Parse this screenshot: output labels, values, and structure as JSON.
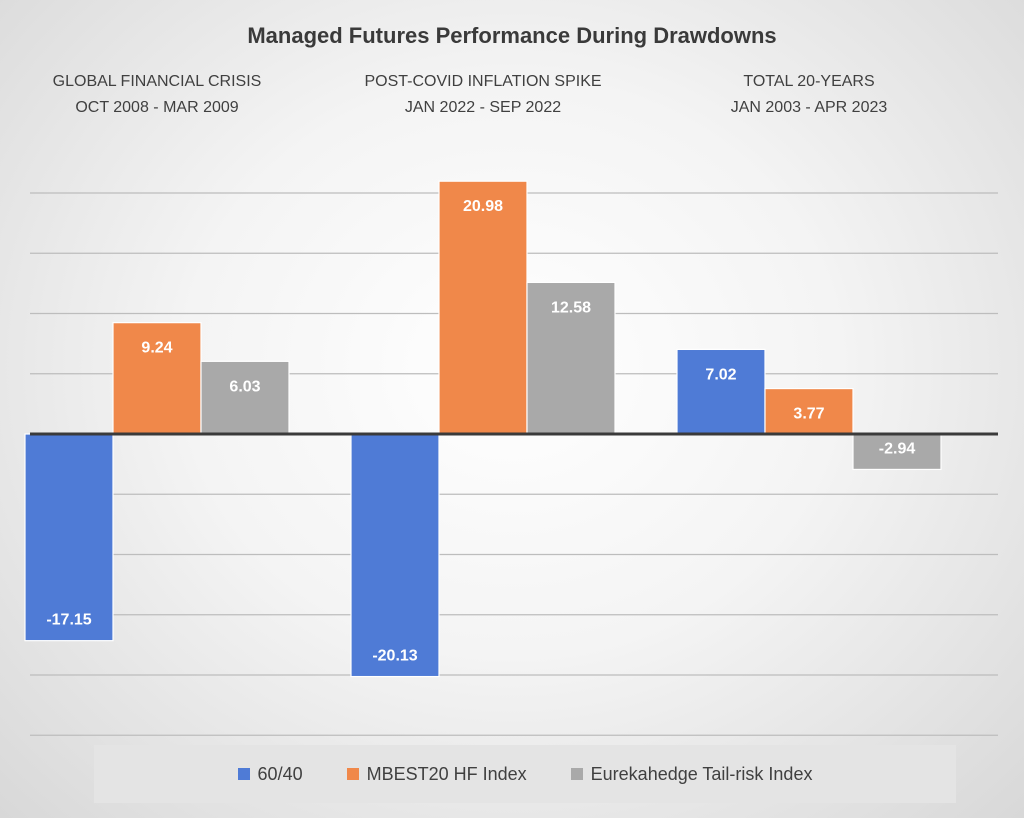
{
  "chart_data": {
    "type": "bar",
    "title": "Managed Futures Performance During Drawdowns",
    "groups": [
      {
        "line1": "GLOBAL FINANCIAL CRISIS",
        "line2": "OCT 2008 - MAR 2009"
      },
      {
        "line1": "POST-COVID INFLATION SPIKE",
        "line2": "JAN 2022 - SEP 2022"
      },
      {
        "line1": "TOTAL 20-YEARS",
        "line2": "JAN 2003 - APR 2023"
      }
    ],
    "series": [
      {
        "name": "60/40",
        "color": "#4f7bd6",
        "values": [
          -17.15,
          -20.13,
          7.02
        ],
        "labels": [
          "-17.15",
          "-20.13",
          "7.02"
        ]
      },
      {
        "name": "MBEST20 HF Index",
        "color": "#f0884a",
        "values": [
          9.24,
          20.98,
          3.77
        ],
        "labels": [
          "9.24",
          "20.98",
          "3.77"
        ]
      },
      {
        "name": "Eurekahedge Tail-risk Index",
        "color": "#a9a9a9",
        "values": [
          6.03,
          12.58,
          -2.94
        ],
        "labels": [
          "6.03",
          "12.58",
          "-2.94"
        ]
      }
    ],
    "ylim": [
      -25,
      25
    ],
    "grid_step": 5,
    "grid": true,
    "axes_visible": false,
    "legend_position": "bottom"
  }
}
